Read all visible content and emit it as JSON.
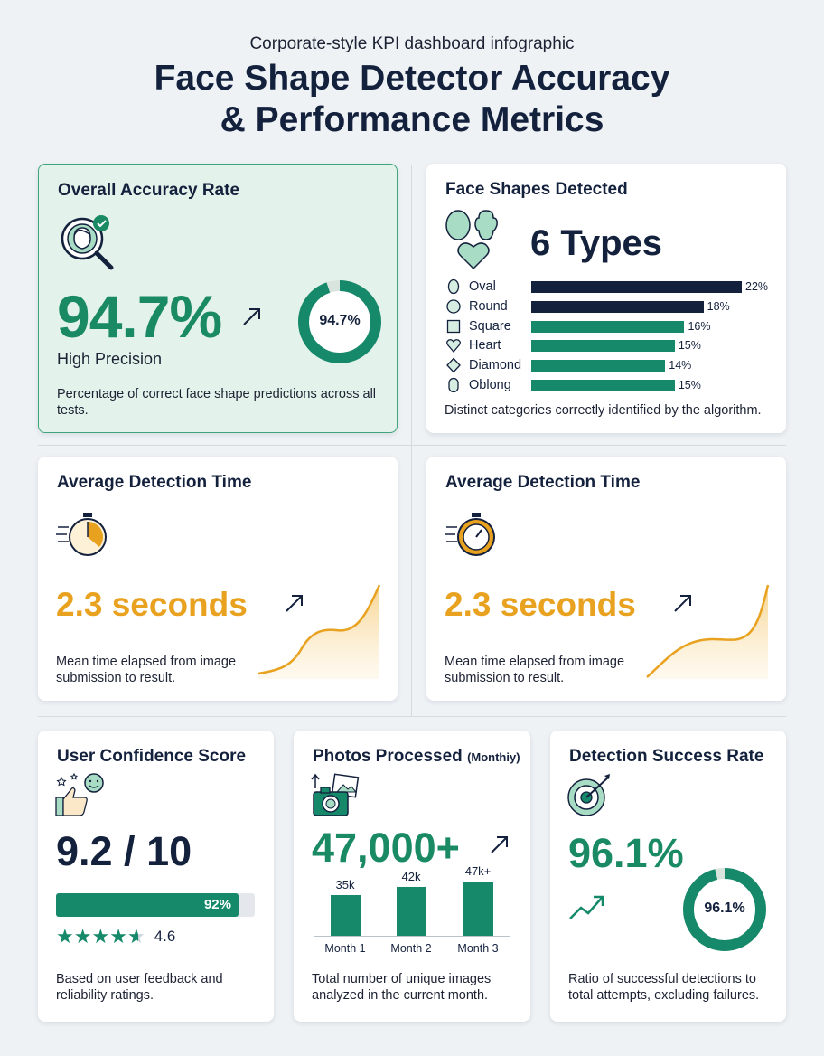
{
  "header": {
    "subtitle": "Corporate-style KPI dashboard infographic",
    "title_line1": "Face Shape Detector Accuracy",
    "title_line2": "& Performance Metrics"
  },
  "colors": {
    "navy": "#14213d",
    "green": "#1a8a64",
    "orange": "#e8a21f",
    "card_green_bg": "#e3f2ea"
  },
  "accuracy": {
    "title": "Overall Accuracy Rate",
    "icon": "face-magnifier-check-icon",
    "value": "94.7%",
    "label": "High Precision",
    "ring_label": "94.7%",
    "ring_percent": 94.7,
    "description": "Percentage of correct face shape predictions across all tests."
  },
  "shapes": {
    "title": "Face Shapes Detected",
    "icon": "face-shapes-icon",
    "count": "6 Types",
    "items": [
      {
        "name": "Oval",
        "pct": "22%",
        "value": 22,
        "color": "#14213d"
      },
      {
        "name": "Round",
        "pct": "18%",
        "value": 18,
        "color": "#14213d"
      },
      {
        "name": "Square",
        "pct": "16%",
        "value": 16,
        "color": "#16896a"
      },
      {
        "name": "Heart",
        "pct": "15%",
        "value": 15,
        "color": "#16896a"
      },
      {
        "name": "Diamond",
        "pct": "14%",
        "value": 14,
        "color": "#16896a"
      },
      {
        "name": "Oblong",
        "pct": "15%",
        "value": 15,
        "color": "#16896a"
      }
    ],
    "description": "Distinct categories correctly identified by the algorithm."
  },
  "detection_time_1": {
    "title": "Average Detection Time",
    "icon": "stopwatch-icon",
    "value": "2.3 seconds",
    "description": "Mean time elapsed from image submission to result."
  },
  "detection_time_2": {
    "title": "Average Detection Time",
    "icon": "stopwatch-icon",
    "value": "2.3 seconds",
    "description": "Mean time elapsed from image submission to result."
  },
  "confidence": {
    "title": "User Confidence Score",
    "icon": "thumbs-up-smiley-icon",
    "value": "9.2 / 10",
    "bar_label": "92%",
    "bar_percent": 92,
    "rating": "4.6",
    "rating_value": 4.6,
    "description": "Based on user feedback and reliability ratings."
  },
  "photos": {
    "title": "Photos Processed",
    "title_suffix": "(Monthiy)",
    "icon": "camera-photos-icon",
    "value": "47,000+",
    "months": [
      {
        "label": "Month 1",
        "value_label": "35k",
        "value": 35
      },
      {
        "label": "Month 2",
        "value_label": "42k",
        "value": 42
      },
      {
        "label": "Month 3",
        "value_label": "47k+",
        "value": 47
      }
    ],
    "description": "Total number of unique images analyzed in the current month."
  },
  "success": {
    "title": "Detection Success Rate",
    "icon": "target-icon",
    "value": "96.1%",
    "ring_label": "96.1%",
    "ring_percent": 96.1,
    "description": "Ratio of successful detections to total attempts, excluding failures."
  }
}
